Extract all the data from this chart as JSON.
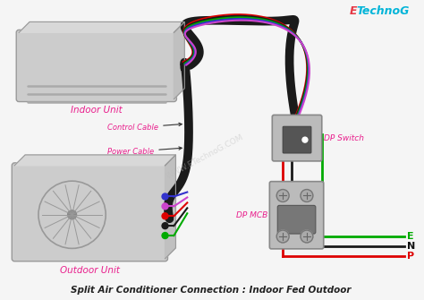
{
  "title": "Split Air Conditioner Connection : Indoor Fed Outdoor",
  "logo_e": "E",
  "logo_rest": "TechnoG",
  "logo_color_e": "#e63946",
  "logo_color_rest": "#00b4d8",
  "background_color": "#f5f5f5",
  "watermark": "WWW.ETechnoG.COM",
  "indoor_label": "Indoor Unit",
  "outdoor_label": "Outdoor Unit",
  "dp_switch_label": "DP Switch",
  "dp_mcb_label": "DP MCB",
  "control_cable_label": "Control Cable",
  "power_cable_label": "Power Cable",
  "label_color": "#e91e8c",
  "e_label": "E",
  "n_label": "N",
  "p_label": "P",
  "e_color": "#00aa00",
  "n_color": "#111111",
  "p_color": "#dd0000",
  "wire_dark": "#1a1a1a",
  "wire_red": "#dd0000",
  "wire_green": "#00aa00",
  "wire_blue": "#3333cc",
  "wire_pink": "#cc44cc",
  "unit_fill": "#cccccc",
  "unit_edge": "#999999",
  "sw_fill": "#bbbbbb",
  "sw_edge": "#888888",
  "knob_fill": "#666666",
  "mcb_toggle_fill": "#777777",
  "mcb_toggle_edge": "#555555"
}
